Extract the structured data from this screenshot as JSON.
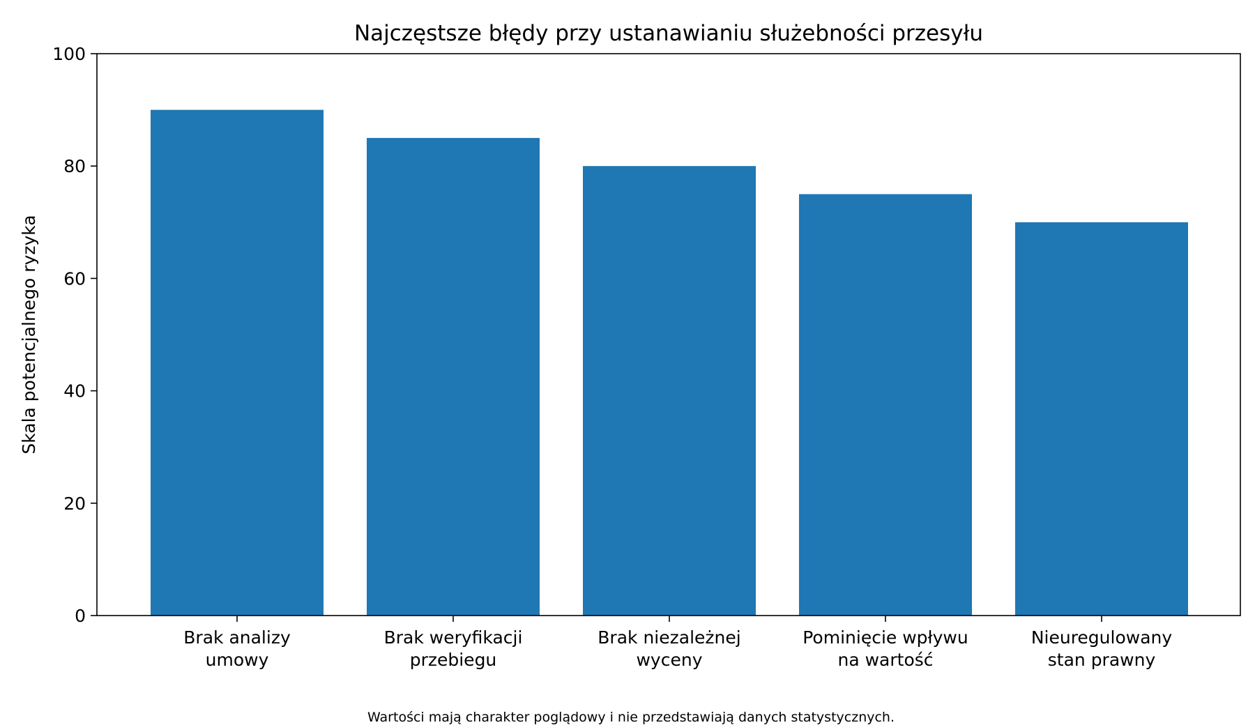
{
  "chart_data": {
    "type": "bar",
    "title": "Najczęstsze błędy przy ustanawianiu służebności przesyłu",
    "xlabel": "",
    "ylabel": "Skala potencjalnego ryzyka",
    "ylim": [
      0,
      100
    ],
    "yticks": [
      "0",
      "20",
      "40",
      "60",
      "80",
      "100"
    ],
    "categories": [
      [
        "Brak analizy",
        "umowy"
      ],
      [
        "Brak weryfikacji",
        "przebiegu"
      ],
      [
        "Brak niezależnej",
        "wyceny"
      ],
      [
        "Pominięcie wpływu",
        "na wartość"
      ],
      [
        "Nieuregulowany",
        "stan prawny"
      ]
    ],
    "values": [
      90,
      85,
      80,
      75,
      70
    ],
    "bar_color": "#1f77b4",
    "grid": false,
    "legend": "none",
    "footnote": "Wartości mają charakter poglądowy i nie przedstawiają danych statystycznych."
  }
}
